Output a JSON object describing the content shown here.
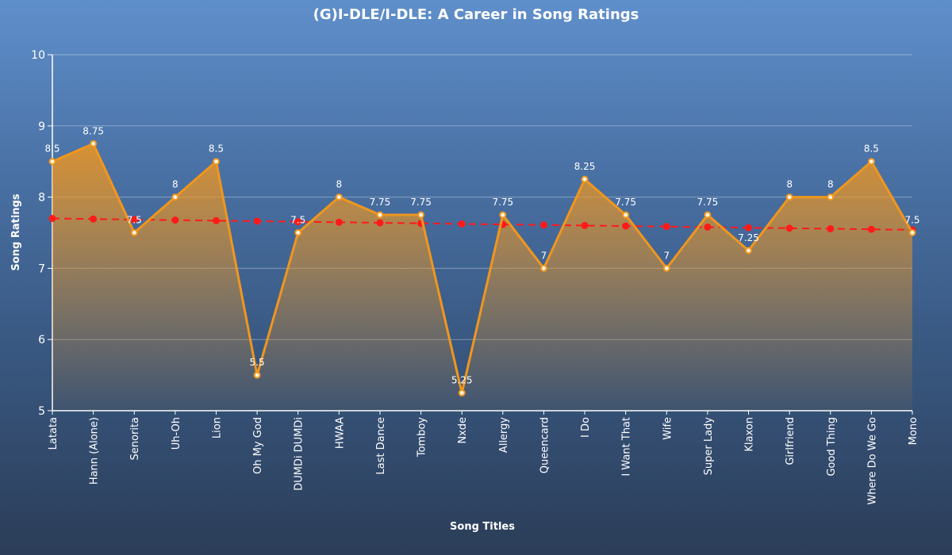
{
  "chart_data": {
    "type": "line",
    "title": "(G)I-DLE/I-DLE: A Career in Song Ratings",
    "xlabel": "Song Titles",
    "ylabel": "Song Ratings",
    "ylim": [
      5,
      10
    ],
    "yticks": [
      5,
      6,
      7,
      8,
      9,
      10
    ],
    "grid": true,
    "categories": [
      "Latata",
      "Hann (Alone)",
      "Senorita",
      "Uh-Oh",
      "Lion",
      "Oh My God",
      "DUMDi DUMDi",
      "HWAA",
      "Last Dance",
      "Tomboy",
      "Nxde",
      "Allergy",
      "Queencard",
      "I Do",
      "I Want That",
      "Wife",
      "Super Lady",
      "Klaxon",
      "Girlfriend",
      "Good Thing",
      "Where Do We Go",
      "Mono"
    ],
    "series": [
      {
        "name": "Rating",
        "type": "area-line",
        "color": "#f0961e",
        "values": [
          8.5,
          8.75,
          7.5,
          8,
          8.5,
          5.5,
          7.5,
          8,
          7.75,
          7.75,
          5.25,
          7.75,
          7,
          8.25,
          7.75,
          7,
          7.75,
          7.25,
          8,
          8,
          8.5,
          7.5
        ],
        "labels": [
          "8.5",
          "8.75",
          "7.5",
          "8",
          "8.5",
          "5.5",
          "7.5",
          "8",
          "7.75",
          "7.75",
          "5.25",
          "7.75",
          "7",
          "8.25",
          "7.75",
          "7",
          "7.75",
          "7.25",
          "8",
          "8",
          "8.5",
          "7.5"
        ]
      },
      {
        "name": "Trend",
        "type": "dashed-line",
        "color": "#ff1a1a",
        "start": 7.7,
        "end": 7.54
      }
    ]
  }
}
